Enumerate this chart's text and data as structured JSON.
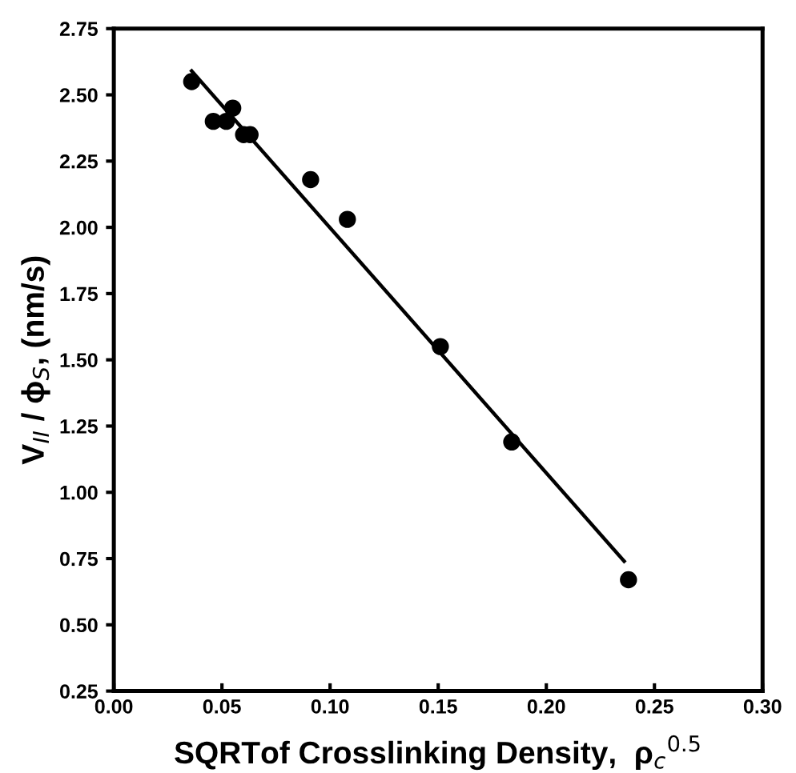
{
  "chart_data": {
    "type": "scatter",
    "xlabel": "SQRTof Crosslinking Density,  ρ$_{c}$$^{0.5}$",
    "ylabel": "V$_{II}$ / ϕ$_{S}$, (nm/s)",
    "x": [
      0.036,
      0.046,
      0.052,
      0.055,
      0.06,
      0.063,
      0.091,
      0.108,
      0.151,
      0.184,
      0.238
    ],
    "series": [
      {
        "color": "#000000",
        "marker": "circle",
        "values": [
          2.55,
          2.4,
          2.4,
          2.45,
          2.35,
          2.35,
          2.18,
          2.03,
          1.55,
          1.19,
          0.67
        ]
      },
      {
        "type": "line",
        "color": "#000000",
        "marker": "none",
        "line_style": "solid",
        "x": [
          0.036,
          0.236
        ],
        "values": [
          2.59,
          0.74
        ]
      }
    ],
    "xlim": [
      0,
      0.3
    ],
    "ylim": [
      0.25,
      2.75
    ],
    "xticks": [
      {
        "value": 0,
        "label": "0.00"
      },
      {
        "value": 0.05,
        "label": "0.05"
      },
      {
        "value": 0.1,
        "label": "0.10"
      },
      {
        "value": 0.15,
        "label": "0.15"
      },
      {
        "value": 0.2,
        "label": "0.20"
      },
      {
        "value": 0.25,
        "label": "0.25"
      },
      {
        "value": 0.3,
        "label": "0.30"
      }
    ],
    "yticks": [
      0.25,
      {
        "value": 0.5,
        "label": "0.50"
      },
      0.75,
      {
        "value": 1.0,
        "label": "1.00"
      },
      1.25,
      {
        "value": 1.5,
        "label": "1.50"
      },
      1.75,
      {
        "value": 2.0,
        "label": "2.00"
      },
      2.25,
      {
        "value": 2.5,
        "label": "2.50"
      },
      2.75
    ],
    "grid": false,
    "legend": false
  }
}
